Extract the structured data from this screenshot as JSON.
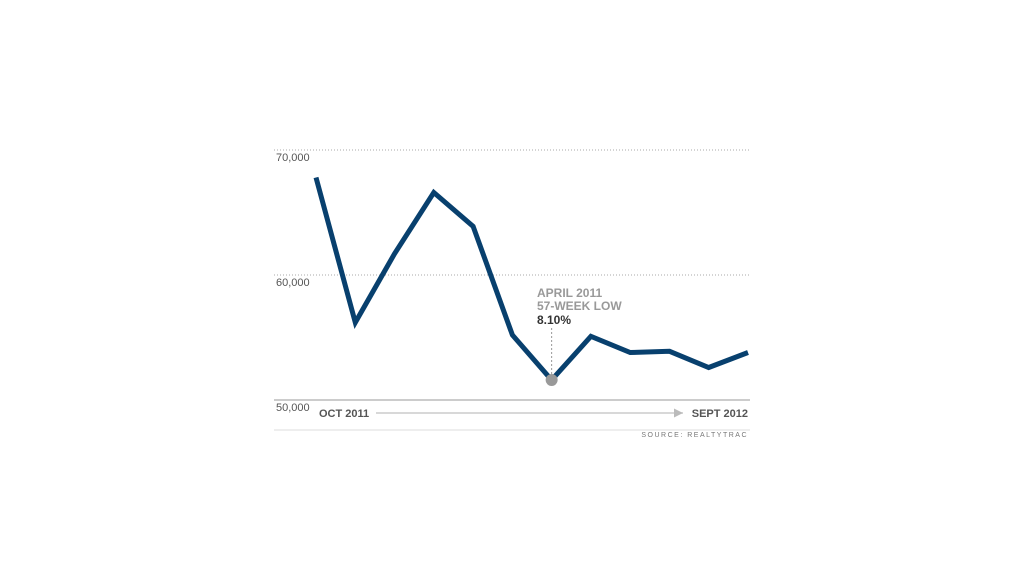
{
  "chart_data": {
    "type": "line",
    "title": "",
    "xlabel": "",
    "ylabel": "",
    "ylim": [
      50000,
      70000
    ],
    "yticks": [
      {
        "value": 70000,
        "label": "70,000"
      },
      {
        "value": 60000,
        "label": "60,000"
      },
      {
        "value": 50000,
        "label": "50,000"
      }
    ],
    "x_start_label": "OCT 2011",
    "x_end_label": "SEPT 2012",
    "grid": true,
    "series": [
      {
        "color": "#08406e",
        "values": [
          67800,
          56200,
          61700,
          66600,
          63900,
          55200,
          51600,
          55100,
          53800,
          53900,
          52600,
          53800
        ]
      }
    ],
    "annotation": {
      "index": 6,
      "line1": "APRIL 2011",
      "line2": "57-WEEK LOW",
      "line3": "8.10%"
    },
    "source": "SOURCE: REALTYTRAC"
  }
}
